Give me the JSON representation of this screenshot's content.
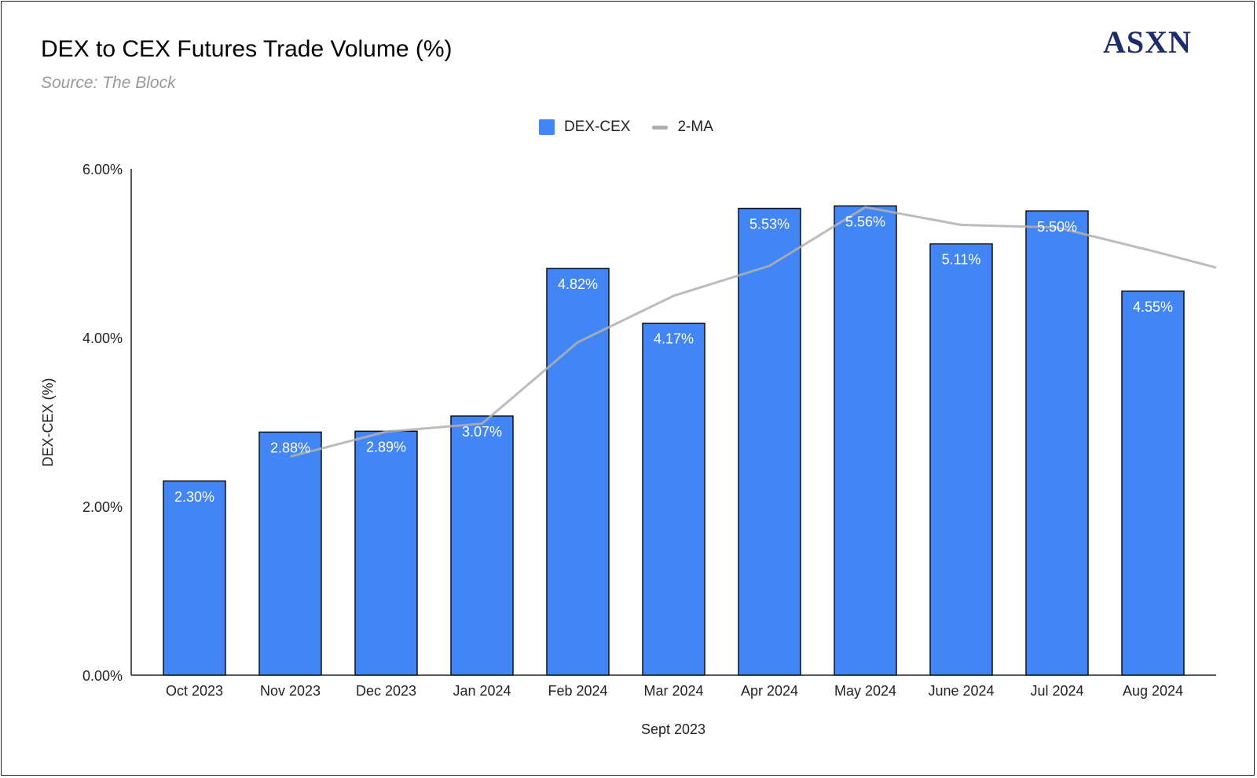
{
  "header": {
    "title": "DEX to CEX Futures Trade Volume (%)",
    "subtitle": "Source: The Block",
    "logo_text": "ASXN"
  },
  "legend": {
    "items": [
      {
        "label": "DEX-CEX",
        "color": "#4285f4"
      },
      {
        "label": "2-MA",
        "color": "#b0b0b0"
      }
    ],
    "position": "top-center"
  },
  "chart_data": {
    "type": "bar",
    "title": "DEX to CEX Futures Trade Volume (%)",
    "subtitle": "Source: The Block",
    "xlabel": "Sept 2023",
    "ylabel": "DEX-CEX (%)",
    "ylim": [
      0,
      6
    ],
    "yticks": [
      "0.00%",
      "2.00%",
      "4.00%",
      "6.00%"
    ],
    "ytick_values": [
      0,
      2,
      4,
      6
    ],
    "categories": [
      "Oct 2023",
      "Nov 2023",
      "Dec 2023",
      "Jan 2024",
      "Feb 2024",
      "Mar 2024",
      "Apr 2024",
      "May 2024",
      "June 2024",
      "Jul 2024",
      "Aug 2024"
    ],
    "series": [
      {
        "name": "DEX-CEX",
        "kind": "bar",
        "color": "#4285f4",
        "values": [
          2.3,
          2.88,
          2.89,
          3.07,
          4.82,
          4.17,
          5.53,
          5.56,
          5.11,
          5.5,
          4.55
        ],
        "labels": [
          "2.30%",
          "2.88%",
          "2.89%",
          "3.07%",
          "4.82%",
          "4.17%",
          "5.53%",
          "5.56%",
          "5.11%",
          "5.50%",
          "4.55%"
        ]
      },
      {
        "name": "2-MA",
        "kind": "line",
        "color": "#b0b0b0",
        "values": [
          null,
          2.59,
          2.885,
          2.98,
          3.945,
          4.495,
          4.85,
          5.545,
          5.335,
          5.305,
          5.025
        ],
        "extends_to_right_edge_value": 4.83
      }
    ],
    "grid": false,
    "legend_position": "top-center"
  }
}
